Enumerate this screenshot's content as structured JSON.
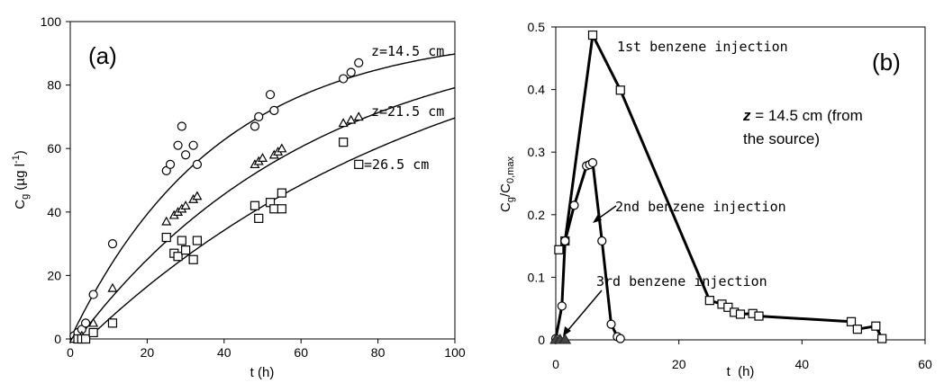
{
  "chart_data": [
    {
      "type": "scatter",
      "panel_label": "(a)",
      "xlabel": "t (h)",
      "ylabel_main": "C",
      "ylabel_sub": "g",
      "ylabel_unit": " (µg l",
      "ylabel_sup": "-1",
      "ylabel_close": ")",
      "xlim": [
        0,
        100
      ],
      "ylim": [
        0,
        100
      ],
      "xticks": [
        "0",
        "20",
        "40",
        "60",
        "80",
        "100"
      ],
      "yticks": [
        "0",
        "20",
        "40",
        "60",
        "80",
        "100"
      ],
      "xtick_values": [
        0,
        20,
        40,
        60,
        80,
        100
      ],
      "ytick_values": [
        0,
        20,
        40,
        60,
        80,
        100
      ],
      "grid": false,
      "series": [
        {
          "name": "z=14.5 cm",
          "marker": "circle",
          "points": [
            [
              1,
              1
            ],
            [
              2,
              2
            ],
            [
              3,
              3
            ],
            [
              4,
              5
            ],
            [
              6,
              14
            ],
            [
              11,
              30
            ],
            [
              25,
              53
            ],
            [
              26,
              55
            ],
            [
              28,
              61
            ],
            [
              29,
              67
            ],
            [
              30,
              58
            ],
            [
              32,
              61
            ],
            [
              33,
              55
            ],
            [
              48,
              67
            ],
            [
              49,
              70
            ],
            [
              52,
              77
            ],
            [
              53,
              72
            ],
            [
              71,
              82
            ],
            [
              73,
              84
            ],
            [
              75,
              87
            ]
          ],
          "fit": {
            "max": 97,
            "k": 0.026
          }
        },
        {
          "name": "z=21.5 cm",
          "marker": "triangle",
          "points": [
            [
              1,
              0
            ],
            [
              2,
              0
            ],
            [
              3,
              1
            ],
            [
              6,
              5
            ],
            [
              11,
              16
            ],
            [
              25,
              37
            ],
            [
              27,
              39
            ],
            [
              28,
              40
            ],
            [
              29,
              41
            ],
            [
              30,
              42
            ],
            [
              32,
              44
            ],
            [
              33,
              45
            ],
            [
              48,
              55
            ],
            [
              49,
              56
            ],
            [
              50,
              57
            ],
            [
              53,
              58
            ],
            [
              54,
              59
            ],
            [
              55,
              60
            ],
            [
              71,
              68
            ],
            [
              73,
              69
            ],
            [
              75,
              70
            ]
          ],
          "fit": {
            "max": 100,
            "k": 0.016,
            "t0": 2
          }
        },
        {
          "name": "z=26.5 cm",
          "marker": "square",
          "points": [
            [
              2,
              0
            ],
            [
              3,
              0
            ],
            [
              4,
              0
            ],
            [
              6,
              2
            ],
            [
              11,
              5
            ],
            [
              25,
              32
            ],
            [
              27,
              27
            ],
            [
              28,
              26
            ],
            [
              29,
              31
            ],
            [
              30,
              28
            ],
            [
              32,
              25
            ],
            [
              33,
              31
            ],
            [
              48,
              42
            ],
            [
              49,
              38
            ],
            [
              52,
              43
            ],
            [
              53,
              41
            ],
            [
              55,
              41
            ],
            [
              55,
              46
            ],
            [
              71,
              62
            ],
            [
              75,
              55
            ]
          ],
          "fit": {
            "max": 110,
            "k": 0.0105,
            "t0": 4.5
          }
        }
      ]
    },
    {
      "type": "line",
      "panel_label": "(b)",
      "xlabel": "t  (h)",
      "ylabel_main": "C",
      "ylabel_sub1": "g",
      "ylabel_mid": "/C",
      "ylabel_sub2": "0,max",
      "xlim": [
        0,
        60
      ],
      "ylim": [
        0,
        0.5
      ],
      "xticks": [
        "0",
        "20",
        "40",
        "60"
      ],
      "yticks": [
        "0",
        "0.1",
        "0.2",
        "0.3",
        "0.4",
        "0.5"
      ],
      "xtick_values": [
        0,
        20,
        40,
        60
      ],
      "ytick_values": [
        0,
        0.1,
        0.2,
        0.3,
        0.4,
        0.5
      ],
      "grid": false,
      "annotation_bold": "z",
      "annotation_line1": " = 14.5 cm (from",
      "annotation_line2": "the source)",
      "series": [
        {
          "name": "1st benzene injection",
          "marker": "square",
          "points": [
            [
              0.5,
              0.144
            ],
            [
              1.5,
              0.158
            ],
            [
              6,
              0.487
            ],
            [
              10.5,
              0.399
            ],
            [
              25,
              0.063
            ],
            [
              27,
              0.057
            ],
            [
              28,
              0.052
            ],
            [
              29,
              0.044
            ],
            [
              30,
              0.041
            ],
            [
              32,
              0.042
            ],
            [
              33,
              0.038
            ],
            [
              48,
              0.029
            ],
            [
              49,
              0.017
            ],
            [
              52,
              0.022
            ],
            [
              53,
              0.002
            ]
          ]
        },
        {
          "name": "2nd benzene injection",
          "marker": "circle",
          "points": [
            [
              0,
              0.002
            ],
            [
              1,
              0.054
            ],
            [
              1.5,
              0.158
            ],
            [
              3,
              0.215
            ],
            [
              5,
              0.278
            ],
            [
              5.5,
              0.28
            ],
            [
              6,
              0.283
            ],
            [
              7.5,
              0.158
            ],
            [
              9,
              0.025
            ],
            [
              10,
              0.005
            ],
            [
              10.5,
              0.002
            ]
          ]
        },
        {
          "name": "3rd benzene injection",
          "marker": "filled-triangle",
          "points": [
            [
              0,
              0
            ],
            [
              0.7,
              0
            ],
            [
              1.5,
              0
            ]
          ]
        }
      ]
    }
  ]
}
